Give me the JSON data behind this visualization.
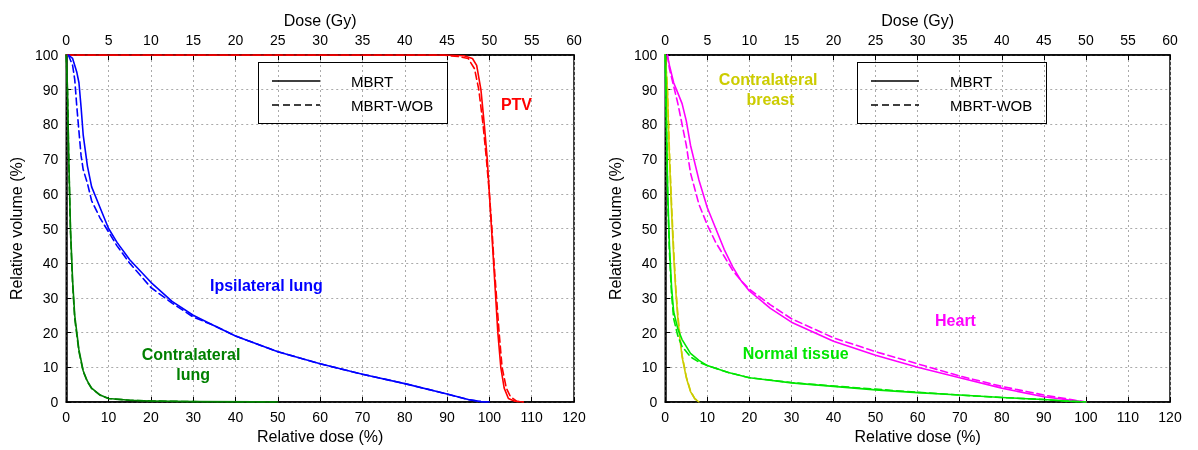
{
  "chart_data": [
    {
      "type": "line",
      "xlabel": "Relative dose (%)",
      "x2label": "Dose (Gy)",
      "ylabel": "Relative volume (%)",
      "xlim": [
        0,
        120
      ],
      "xticks": [
        0,
        10,
        20,
        30,
        40,
        50,
        60,
        70,
        80,
        90,
        100,
        110,
        120
      ],
      "x2lim": [
        0,
        60
      ],
      "x2ticks": [
        0,
        5,
        10,
        15,
        20,
        25,
        30,
        35,
        40,
        45,
        50,
        55,
        60
      ],
      "ylim": [
        0,
        100
      ],
      "yticks": [
        0,
        10,
        20,
        30,
        40,
        50,
        60,
        70,
        80,
        90,
        100
      ],
      "grid": true,
      "marker": "none",
      "series": [
        {
          "name": "PTV",
          "color": "#ff0000",
          "line_style": "solid",
          "x": [
            0,
            90,
            94,
            96,
            97,
            98,
            98.8,
            99.5,
            100,
            100.5,
            101,
            101.5,
            102,
            102.7,
            103.5,
            104.5,
            106,
            108
          ],
          "values": [
            100,
            100,
            99.8,
            99,
            97,
            90,
            80,
            70,
            60,
            50,
            40,
            30,
            20,
            10,
            4,
            1,
            0.2,
            0
          ]
        },
        {
          "color": "#ff0000",
          "line_style": "dashed",
          "x": [
            0,
            89,
            93,
            95,
            96.5,
            97.5,
            98.5,
            99.3,
            100,
            100.6,
            101.1,
            101.7,
            102.3,
            103,
            104,
            105,
            106.5,
            108
          ],
          "values": [
            100,
            100,
            99.5,
            99,
            96,
            90,
            80,
            70,
            60,
            50,
            40,
            30,
            20,
            10,
            4,
            1.5,
            0.2,
            0
          ]
        },
        {
          "name": "Ipsilateral lung",
          "color": "#0000ff",
          "line_style": "solid",
          "x": [
            0.5,
            1.5,
            2.5,
            3,
            3.5,
            4,
            5,
            6,
            8,
            10,
            12,
            15,
            20,
            25,
            30,
            35,
            40,
            50,
            60,
            70,
            80,
            90,
            95,
            98,
            100
          ],
          "values": [
            100,
            99,
            95,
            92,
            85,
            77,
            68,
            62,
            56,
            50,
            46,
            41,
            34.5,
            29,
            25,
            22,
            19,
            14.5,
            11,
            8,
            5.3,
            2.3,
            0.7,
            0.1,
            0
          ]
        },
        {
          "color": "#0000ff",
          "line_style": "dashed",
          "x": [
            0.5,
            1.5,
            2,
            2.5,
            3,
            3.5,
            4,
            5,
            6,
            8,
            10,
            12,
            15,
            20,
            25,
            30,
            35,
            40,
            50,
            60,
            70,
            80,
            90,
            95,
            98,
            100
          ],
          "values": [
            100,
            97,
            93,
            85,
            78,
            71,
            67,
            63,
            58,
            53,
            49,
            45,
            40,
            33,
            28.5,
            24.5,
            22,
            19,
            14.5,
            11,
            8,
            5.3,
            2.3,
            0.7,
            0.1,
            0
          ]
        },
        {
          "name": "Contralateral lung",
          "color": "#008000",
          "line_style": "solid",
          "x": [
            0,
            0.3,
            0.6,
            1,
            1.5,
            2,
            3,
            4,
            5,
            6,
            8,
            10,
            15,
            20,
            30,
            50
          ],
          "values": [
            100,
            90,
            70,
            50,
            35,
            25,
            15,
            9,
            6,
            4,
            2,
            1,
            0.5,
            0.3,
            0.1,
            0
          ]
        },
        {
          "color": "#008000",
          "line_style": "dashed",
          "x": [
            0,
            0.3,
            0.6,
            1,
            1.5,
            2,
            3,
            4,
            5,
            6,
            8,
            10,
            15,
            20,
            30,
            50
          ],
          "values": [
            100,
            89,
            69,
            49,
            34,
            24,
            14.5,
            8.8,
            5.8,
            3.9,
            2,
            1,
            0.5,
            0.3,
            0.1,
            0
          ]
        }
      ],
      "annotations": [
        "MBRT",
        "MBRT-WOB"
      ]
    },
    {
      "type": "line",
      "xlabel": "Relative dose (%)",
      "x2label": "Dose (Gy)",
      "ylabel": "Relative volume (%)",
      "xlim": [
        0,
        120
      ],
      "xticks": [
        0,
        10,
        20,
        30,
        40,
        50,
        60,
        70,
        80,
        90,
        100,
        110,
        120
      ],
      "x2lim": [
        0,
        60
      ],
      "x2ticks": [
        0,
        5,
        10,
        15,
        20,
        25,
        30,
        35,
        40,
        45,
        50,
        55,
        60
      ],
      "ylim": [
        0,
        100
      ],
      "yticks": [
        0,
        10,
        20,
        30,
        40,
        50,
        60,
        70,
        80,
        90,
        100
      ],
      "grid": true,
      "marker": "none",
      "series": [
        {
          "name": "Contralateral breast",
          "color": "#cccc00",
          "line_style": "solid",
          "x": [
            0,
            0.5,
            1,
            1.5,
            2,
            2.5,
            3,
            3.5,
            4,
            5,
            6,
            7,
            8
          ],
          "values": [
            100,
            90,
            70,
            55,
            42,
            32,
            24,
            18,
            13,
            7,
            3,
            1,
            0
          ]
        },
        {
          "color": "#cccc00",
          "line_style": "dashed",
          "x": [
            0,
            0.5,
            1,
            1.5,
            2,
            2.5,
            3,
            3.5,
            4,
            5,
            6,
            7,
            8
          ],
          "values": [
            100,
            91,
            72,
            57,
            44,
            33,
            25,
            19,
            13.5,
            7.3,
            3.2,
            1,
            0
          ]
        },
        {
          "name": "Heart",
          "color": "#ff00ff",
          "line_style": "solid",
          "x": [
            0.5,
            1,
            2,
            3,
            4,
            5,
            6,
            8,
            10,
            12,
            14,
            16,
            18,
            20,
            25,
            30,
            40,
            50,
            60,
            70,
            80,
            90,
            95,
            100
          ],
          "values": [
            100,
            97,
            92,
            89,
            86,
            81,
            74,
            64,
            56,
            50,
            44,
            39,
            35,
            32,
            27,
            23,
            17.5,
            13.5,
            10,
            7,
            4,
            1.5,
            0.7,
            0
          ]
        },
        {
          "color": "#ff00ff",
          "line_style": "dashed",
          "x": [
            0.5,
            1,
            2,
            3,
            4,
            5,
            6,
            8,
            10,
            12,
            14,
            16,
            18,
            20,
            25,
            30,
            40,
            50,
            60,
            70,
            80,
            90,
            100
          ],
          "values": [
            100,
            96,
            91,
            86,
            80,
            74,
            66,
            57,
            51,
            46,
            42,
            38,
            35,
            32.5,
            28,
            24,
            18.5,
            14.5,
            11,
            7.5,
            4.5,
            2,
            0
          ]
        },
        {
          "name": "Normal tissue",
          "color": "#00e600",
          "line_style": "solid",
          "x": [
            0,
            0.3,
            0.6,
            1,
            1.5,
            2,
            3,
            4,
            6,
            8,
            10,
            15,
            20,
            30,
            40,
            50,
            60,
            70,
            80,
            90,
            95,
            100
          ],
          "values": [
            100,
            80,
            60,
            45,
            33,
            26,
            21,
            18,
            14,
            12,
            10.5,
            8.5,
            7,
            5.5,
            4.5,
            3.5,
            2.7,
            2,
            1.3,
            0.7,
            0.3,
            0
          ]
        },
        {
          "color": "#00e600",
          "line_style": "dashed",
          "x": [
            0,
            0.3,
            0.6,
            1,
            1.5,
            2,
            3,
            4,
            6,
            8,
            10,
            15,
            20,
            30,
            40,
            50,
            60,
            70,
            80,
            90,
            95,
            100
          ],
          "values": [
            100,
            79,
            58,
            43,
            31,
            24,
            19,
            16,
            13,
            11.5,
            10.5,
            8.5,
            7,
            5.6,
            4.6,
            3.7,
            2.8,
            2,
            1.3,
            0.7,
            0.3,
            0
          ]
        }
      ],
      "annotations": [
        "MBRT",
        "MBRT-WOB"
      ]
    }
  ]
}
